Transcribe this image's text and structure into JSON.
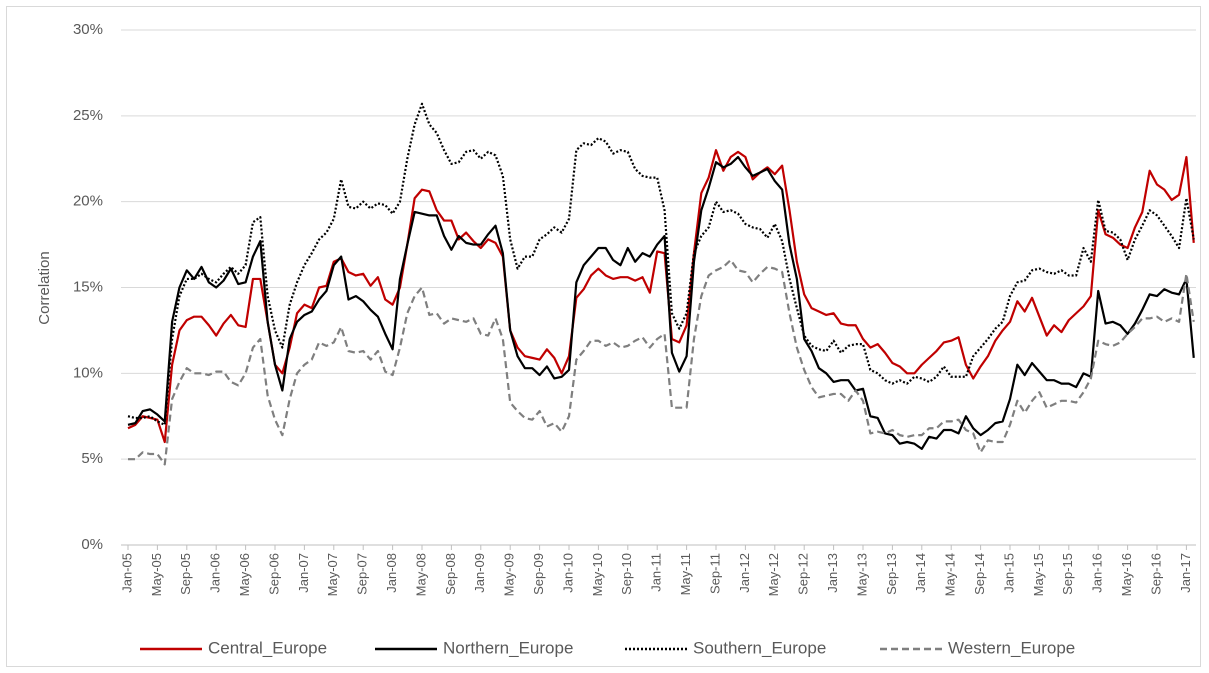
{
  "chart_data": {
    "type": "line",
    "y_label": "Correlation",
    "grid": true,
    "legend": "bottom",
    "categories": [
      "Jan-05",
      null,
      null,
      null,
      "May-05",
      null,
      null,
      null,
      "Sep-05",
      null,
      null,
      null,
      "Jan-06",
      null,
      null,
      null,
      "May-06",
      null,
      null,
      null,
      "Sep-06",
      null,
      null,
      null,
      "Jan-07",
      null,
      null,
      null,
      "May-07",
      null,
      null,
      null,
      "Sep-07",
      null,
      null,
      null,
      "Jan-08",
      null,
      null,
      null,
      "May-08",
      null,
      null,
      null,
      "Sep-08",
      null,
      null,
      null,
      "Jan-09",
      null,
      null,
      null,
      "May-09",
      null,
      null,
      null,
      "Sep-09",
      null,
      null,
      null,
      "Jan-10",
      null,
      null,
      null,
      "May-10",
      null,
      null,
      null,
      "Sep-10",
      null,
      null,
      null,
      "Jan-11",
      null,
      null,
      null,
      "May-11",
      null,
      null,
      null,
      "Sep-11",
      null,
      null,
      null,
      "Jan-12",
      null,
      null,
      null,
      "May-12",
      null,
      null,
      null,
      "Sep-12",
      null,
      null,
      null,
      "Jan-13",
      null,
      null,
      null,
      "May-13",
      null,
      null,
      null,
      "Sep-13",
      null,
      null,
      null,
      "Jan-14",
      null,
      null,
      null,
      "May-14",
      null,
      null,
      null,
      "Sep-14",
      null,
      null,
      null,
      "Jan-15",
      null,
      null,
      null,
      "May-15",
      null,
      null,
      null,
      "Sep-15",
      null,
      null,
      null,
      "Jan-16",
      null,
      null,
      null,
      "May-16",
      null,
      null,
      null,
      "Sep-16",
      null,
      null,
      null,
      "Jan-17",
      null
    ],
    "ylim": [
      0,
      30
    ],
    "yticks": [
      {
        "value": 0,
        "label": "0%"
      },
      {
        "value": 5,
        "label": "5%"
      },
      {
        "value": 10,
        "label": "10%"
      },
      {
        "value": 15,
        "label": "15%"
      },
      {
        "value": 20,
        "label": "20%"
      },
      {
        "value": 25,
        "label": "25%"
      },
      {
        "value": 30,
        "label": "30%"
      }
    ],
    "series": [
      {
        "name": "Central_Europe",
        "color": "#c00000",
        "dash": "solid",
        "values": [
          6.8,
          7.0,
          7.5,
          7.4,
          7.3,
          6.0,
          10.5,
          12.5,
          13.1,
          13.3,
          13.3,
          12.8,
          12.2,
          12.9,
          13.4,
          12.8,
          12.7,
          15.5,
          15.5,
          13.0,
          10.5,
          10.0,
          11.5,
          13.5,
          14.0,
          13.8,
          15.0,
          15.1,
          16.5,
          16.7,
          15.9,
          15.7,
          15.8,
          15.1,
          15.6,
          14.3,
          14.0,
          15.0,
          17.5,
          20.2,
          20.7,
          20.6,
          19.5,
          18.9,
          18.9,
          17.8,
          18.2,
          17.7,
          17.3,
          17.8,
          17.6,
          16.8,
          12.5,
          11.5,
          11.0,
          10.9,
          10.8,
          11.4,
          10.9,
          10.0,
          11.0,
          14.4,
          14.9,
          15.7,
          16.1,
          15.7,
          15.5,
          15.6,
          15.6,
          15.4,
          15.6,
          14.7,
          17.1,
          17.0,
          12.0,
          11.8,
          12.8,
          17.0,
          20.5,
          21.4,
          23.0,
          21.8,
          22.6,
          22.9,
          22.6,
          21.3,
          21.7,
          22.0,
          21.6,
          22.1,
          19.5,
          16.5,
          14.6,
          13.8,
          13.6,
          13.4,
          13.5,
          12.9,
          12.8,
          12.8,
          12.0,
          11.5,
          11.7,
          11.2,
          10.6,
          10.4,
          10.0,
          10.0,
          10.5,
          10.9,
          11.3,
          11.8,
          11.9,
          12.1,
          10.5,
          9.7,
          10.4,
          11.0,
          11.9,
          12.5,
          13.0,
          14.2,
          13.6,
          14.4,
          13.3,
          12.2,
          12.8,
          12.4,
          13.1,
          13.5,
          13.9,
          14.5,
          19.5,
          18.1,
          17.9,
          17.5,
          17.3,
          18.5,
          19.4,
          21.8,
          21.0,
          20.7,
          20.1,
          20.4,
          22.6,
          17.6
        ]
      },
      {
        "name": "Northern_Europe",
        "color": "#000000",
        "dash": "solid",
        "values": [
          7.0,
          7.1,
          7.8,
          7.9,
          7.6,
          7.2,
          13.0,
          15.0,
          16.0,
          15.5,
          16.2,
          15.3,
          15.0,
          15.4,
          16.1,
          15.2,
          15.3,
          16.8,
          17.7,
          13.0,
          10.5,
          9.0,
          12.0,
          13.0,
          13.4,
          13.6,
          14.3,
          14.8,
          16.3,
          16.8,
          14.3,
          14.5,
          14.2,
          13.7,
          13.3,
          12.3,
          11.4,
          15.5,
          17.5,
          19.4,
          19.3,
          19.2,
          19.2,
          18.0,
          17.2,
          18.0,
          17.6,
          17.5,
          17.5,
          18.1,
          18.6,
          17.0,
          12.5,
          11.0,
          10.3,
          10.3,
          9.9,
          10.4,
          9.7,
          9.8,
          10.2,
          15.3,
          16.3,
          16.8,
          17.3,
          17.3,
          16.6,
          16.3,
          17.3,
          16.5,
          17.0,
          16.8,
          17.5,
          18.0,
          11.2,
          10.1,
          11.0,
          16.5,
          19.5,
          20.8,
          22.3,
          22.0,
          22.2,
          22.6,
          22.0,
          21.5,
          21.7,
          21.9,
          21.2,
          20.7,
          17.5,
          15.5,
          12.0,
          11.3,
          10.3,
          10.0,
          9.5,
          9.6,
          9.6,
          9.0,
          9.1,
          7.5,
          7.4,
          6.5,
          6.4,
          5.9,
          6.0,
          5.9,
          5.6,
          6.3,
          6.2,
          6.7,
          6.7,
          6.5,
          7.5,
          6.8,
          6.4,
          6.7,
          7.1,
          7.2,
          8.5,
          10.5,
          9.9,
          10.6,
          10.1,
          9.6,
          9.6,
          9.4,
          9.4,
          9.2,
          10.0,
          9.8,
          14.8,
          12.9,
          13.0,
          12.8,
          12.3,
          12.9,
          13.7,
          14.6,
          14.5,
          14.9,
          14.7,
          14.6,
          15.5,
          10.9
        ]
      },
      {
        "name": "Southern_Europe",
        "color": "#000000",
        "dash": "dotted",
        "values": [
          7.5,
          7.4,
          7.4,
          7.5,
          7.2,
          7.0,
          12.0,
          14.5,
          15.5,
          15.5,
          15.8,
          15.5,
          15.3,
          15.8,
          16.2,
          15.8,
          16.3,
          18.8,
          19.1,
          14.5,
          12.5,
          11.5,
          14.0,
          15.3,
          16.3,
          17.0,
          17.8,
          18.2,
          19.0,
          21.3,
          19.7,
          19.6,
          20.0,
          19.6,
          19.9,
          19.8,
          19.3,
          20.0,
          22.5,
          24.5,
          25.7,
          24.5,
          24.0,
          23.0,
          22.2,
          22.3,
          22.9,
          23.0,
          22.5,
          22.9,
          22.7,
          21.5,
          17.8,
          16.1,
          16.8,
          16.8,
          17.8,
          18.1,
          18.5,
          18.2,
          19.0,
          23.0,
          23.4,
          23.3,
          23.7,
          23.5,
          22.8,
          23.0,
          22.9,
          21.9,
          21.5,
          21.4,
          21.4,
          19.5,
          13.5,
          12.6,
          13.5,
          17.0,
          18.0,
          18.5,
          20.0,
          19.4,
          19.5,
          19.3,
          18.7,
          18.5,
          18.4,
          17.9,
          18.7,
          17.7,
          15.5,
          13.8,
          12.2,
          11.6,
          11.4,
          11.3,
          11.9,
          11.2,
          11.6,
          11.7,
          11.7,
          10.2,
          10.0,
          9.6,
          9.4,
          9.6,
          9.4,
          9.8,
          9.7,
          9.5,
          9.8,
          10.4,
          9.8,
          9.8,
          9.8,
          11.0,
          11.5,
          12.0,
          12.6,
          13.0,
          14.5,
          15.3,
          15.4,
          16.0,
          16.1,
          15.9,
          15.8,
          16.0,
          15.7,
          15.7,
          17.3,
          16.5,
          20.1,
          18.3,
          18.2,
          17.8,
          16.6,
          17.8,
          18.6,
          19.5,
          19.2,
          18.6,
          18.0,
          17.3,
          20.2,
          17.8
        ]
      },
      {
        "name": "Western_Europe",
        "color": "#7f7f7f",
        "dash": "dashed",
        "values": [
          5.0,
          5.0,
          5.4,
          5.3,
          5.3,
          4.7,
          8.5,
          9.5,
          10.3,
          10.0,
          10.0,
          9.9,
          10.1,
          10.1,
          9.5,
          9.3,
          10.0,
          11.5,
          12.0,
          8.7,
          7.3,
          6.4,
          8.5,
          10.0,
          10.5,
          10.8,
          11.8,
          11.6,
          11.8,
          12.7,
          11.3,
          11.2,
          11.3,
          10.8,
          11.3,
          10.1,
          9.9,
          11.5,
          13.5,
          14.5,
          15.0,
          13.4,
          13.5,
          12.9,
          13.2,
          13.1,
          13.0,
          13.2,
          12.3,
          12.2,
          13.2,
          12.0,
          8.3,
          7.8,
          7.4,
          7.3,
          7.8,
          6.9,
          7.1,
          6.6,
          7.5,
          10.8,
          11.3,
          11.9,
          11.9,
          11.6,
          11.8,
          11.5,
          11.6,
          11.9,
          12.1,
          11.5,
          12.0,
          12.3,
          8.0,
          8.0,
          8.0,
          12.0,
          14.5,
          15.7,
          16.0,
          16.2,
          16.6,
          16.0,
          15.9,
          15.3,
          15.8,
          16.2,
          16.1,
          15.9,
          13.5,
          11.5,
          10.2,
          9.2,
          8.6,
          8.7,
          8.8,
          8.8,
          8.4,
          9.0,
          8.4,
          6.5,
          6.6,
          6.5,
          6.7,
          6.4,
          6.3,
          6.4,
          6.4,
          6.8,
          6.8,
          7.2,
          7.2,
          7.3,
          6.7,
          6.5,
          5.4,
          6.1,
          6.0,
          6.0,
          7.0,
          8.4,
          7.7,
          8.4,
          8.9,
          8.0,
          8.2,
          8.4,
          8.4,
          8.3,
          8.9,
          9.7,
          11.9,
          11.7,
          11.6,
          11.8,
          12.3,
          12.7,
          13.2,
          13.2,
          13.3,
          13.0,
          13.2,
          13.0,
          15.8,
          13.0
        ]
      }
    ]
  }
}
